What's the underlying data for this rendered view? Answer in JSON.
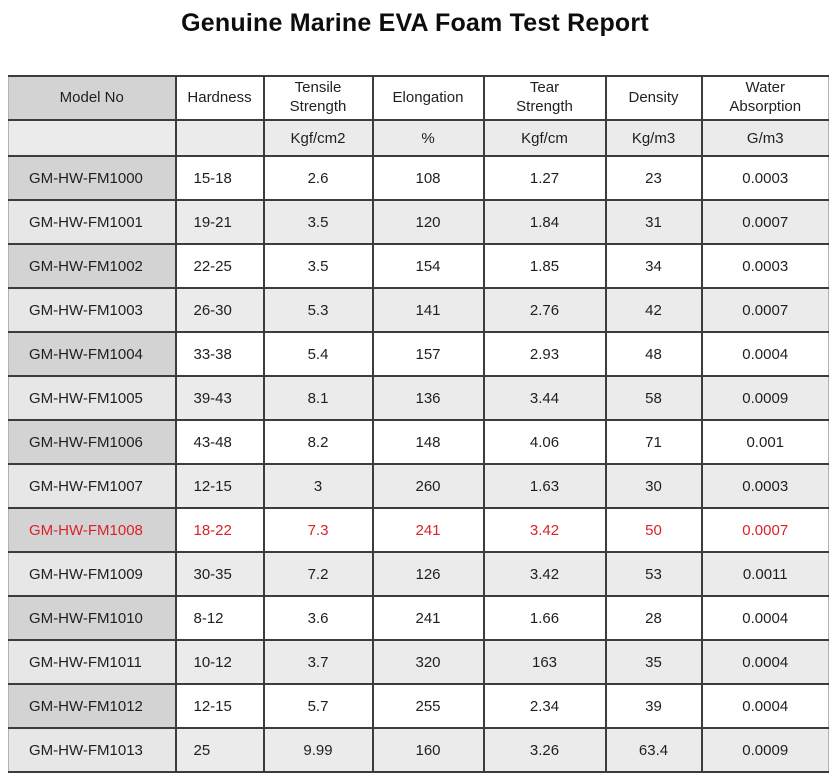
{
  "title": "Genuine Marine EVA Foam Test Report",
  "colors": {
    "highlight_text": "#d9232a",
    "model_cell_bg": "#d3d3d3",
    "alt_row_bg": "#ebebeb",
    "grid_border": "#3c3c3c"
  },
  "table": {
    "headers": [
      "Model No",
      "Hardness",
      "Tensile\nStrength",
      "Elongation",
      "Tear\nStrength",
      "Density",
      "Water\nAbsorption"
    ],
    "units": [
      "",
      "",
      "Kgf/cm2",
      "%",
      "Kgf/cm",
      "Kg/m3",
      "G/m3"
    ],
    "rows": [
      {
        "cells": [
          "GM-HW-FM1000",
          "15-18",
          "2.6",
          "108",
          "1.27",
          "23",
          "0.0003"
        ],
        "highlight": false
      },
      {
        "cells": [
          "GM-HW-FM1001",
          "19-21",
          "3.5",
          "120",
          "1.84",
          "31",
          "0.0007"
        ],
        "highlight": false
      },
      {
        "cells": [
          "GM-HW-FM1002",
          "22-25",
          "3.5",
          "154",
          "1.85",
          "34",
          "0.0003"
        ],
        "highlight": false
      },
      {
        "cells": [
          "GM-HW-FM1003",
          "26-30",
          "5.3",
          "141",
          "2.76",
          "42",
          "0.0007"
        ],
        "highlight": false
      },
      {
        "cells": [
          "GM-HW-FM1004",
          "33-38",
          "5.4",
          "157",
          "2.93",
          "48",
          "0.0004"
        ],
        "highlight": false
      },
      {
        "cells": [
          "GM-HW-FM1005",
          "39-43",
          "8.1",
          "136",
          "3.44",
          "58",
          "0.0009"
        ],
        "highlight": false
      },
      {
        "cells": [
          "GM-HW-FM1006",
          "43-48",
          "8.2",
          "148",
          "4.06",
          "71",
          "0.001"
        ],
        "highlight": false
      },
      {
        "cells": [
          "GM-HW-FM1007",
          "12-15",
          "3",
          "260",
          "1.63",
          "30",
          "0.0003"
        ],
        "highlight": false
      },
      {
        "cells": [
          "GM-HW-FM1008",
          "18-22",
          "7.3",
          "241",
          "3.42",
          "50",
          "0.0007"
        ],
        "highlight": true
      },
      {
        "cells": [
          "GM-HW-FM1009",
          "30-35",
          "7.2",
          "126",
          "3.42",
          "53",
          "0.0011"
        ],
        "highlight": false
      },
      {
        "cells": [
          "GM-HW-FM1010",
          "8-12",
          "3.6",
          "241",
          "1.66",
          "28",
          "0.0004"
        ],
        "highlight": false
      },
      {
        "cells": [
          "GM-HW-FM1011",
          "10-12",
          "3.7",
          "320",
          "163",
          "35",
          "0.0004"
        ],
        "highlight": false
      },
      {
        "cells": [
          "GM-HW-FM1012",
          "12-15",
          "5.7",
          "255",
          "2.34",
          "39",
          "0.0004"
        ],
        "highlight": false
      },
      {
        "cells": [
          "GM-HW-FM1013",
          "25",
          "9.99",
          "160",
          "3.26",
          "63.4",
          "0.0009"
        ],
        "highlight": false
      }
    ]
  }
}
